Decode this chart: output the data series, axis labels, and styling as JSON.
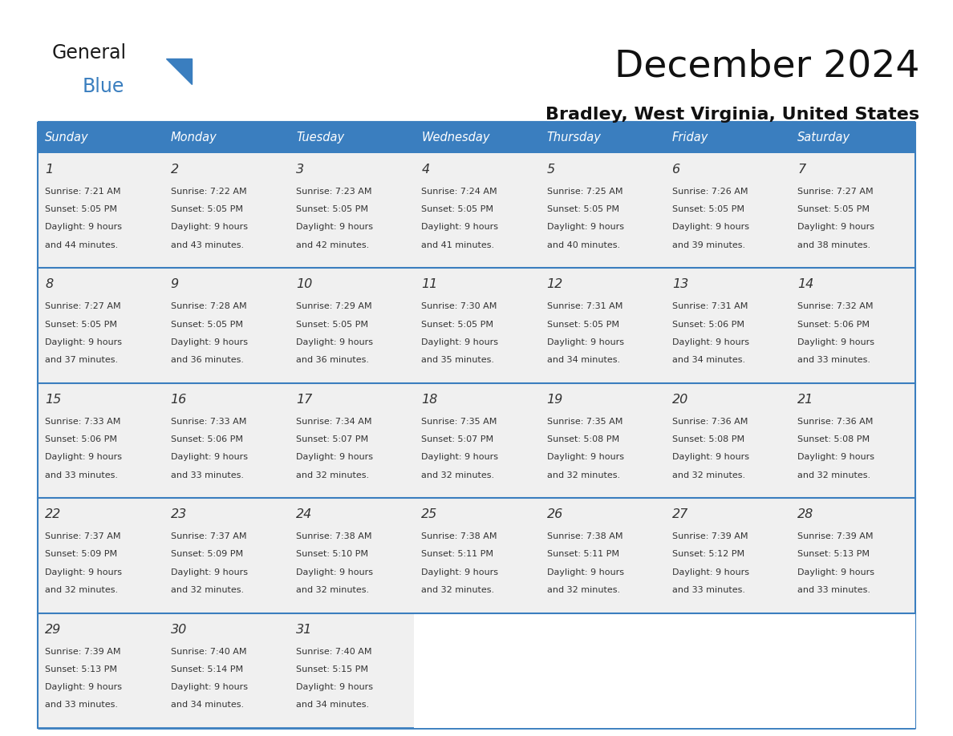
{
  "title": "December 2024",
  "subtitle": "Bradley, West Virginia, United States",
  "header_color": "#3a7ebf",
  "header_text_color": "#ffffff",
  "cell_bg_color": "#f0f0f0",
  "cell_bg_color_white": "#ffffff",
  "day_number_color": "#333333",
  "text_color": "#333333",
  "border_color": "#3a7ebf",
  "separator_color": "#3a7ebf",
  "days_of_week": [
    "Sunday",
    "Monday",
    "Tuesday",
    "Wednesday",
    "Thursday",
    "Friday",
    "Saturday"
  ],
  "weeks": [
    [
      {
        "day": 1,
        "sunrise": "7:21 AM",
        "sunset": "5:05 PM",
        "daylight": "9 hours and 44 minutes"
      },
      {
        "day": 2,
        "sunrise": "7:22 AM",
        "sunset": "5:05 PM",
        "daylight": "9 hours and 43 minutes"
      },
      {
        "day": 3,
        "sunrise": "7:23 AM",
        "sunset": "5:05 PM",
        "daylight": "9 hours and 42 minutes"
      },
      {
        "day": 4,
        "sunrise": "7:24 AM",
        "sunset": "5:05 PM",
        "daylight": "9 hours and 41 minutes"
      },
      {
        "day": 5,
        "sunrise": "7:25 AM",
        "sunset": "5:05 PM",
        "daylight": "9 hours and 40 minutes"
      },
      {
        "day": 6,
        "sunrise": "7:26 AM",
        "sunset": "5:05 PM",
        "daylight": "9 hours and 39 minutes"
      },
      {
        "day": 7,
        "sunrise": "7:27 AM",
        "sunset": "5:05 PM",
        "daylight": "9 hours and 38 minutes"
      }
    ],
    [
      {
        "day": 8,
        "sunrise": "7:27 AM",
        "sunset": "5:05 PM",
        "daylight": "9 hours and 37 minutes"
      },
      {
        "day": 9,
        "sunrise": "7:28 AM",
        "sunset": "5:05 PM",
        "daylight": "9 hours and 36 minutes"
      },
      {
        "day": 10,
        "sunrise": "7:29 AM",
        "sunset": "5:05 PM",
        "daylight": "9 hours and 36 minutes"
      },
      {
        "day": 11,
        "sunrise": "7:30 AM",
        "sunset": "5:05 PM",
        "daylight": "9 hours and 35 minutes"
      },
      {
        "day": 12,
        "sunrise": "7:31 AM",
        "sunset": "5:05 PM",
        "daylight": "9 hours and 34 minutes"
      },
      {
        "day": 13,
        "sunrise": "7:31 AM",
        "sunset": "5:06 PM",
        "daylight": "9 hours and 34 minutes"
      },
      {
        "day": 14,
        "sunrise": "7:32 AM",
        "sunset": "5:06 PM",
        "daylight": "9 hours and 33 minutes"
      }
    ],
    [
      {
        "day": 15,
        "sunrise": "7:33 AM",
        "sunset": "5:06 PM",
        "daylight": "9 hours and 33 minutes"
      },
      {
        "day": 16,
        "sunrise": "7:33 AM",
        "sunset": "5:06 PM",
        "daylight": "9 hours and 33 minutes"
      },
      {
        "day": 17,
        "sunrise": "7:34 AM",
        "sunset": "5:07 PM",
        "daylight": "9 hours and 32 minutes"
      },
      {
        "day": 18,
        "sunrise": "7:35 AM",
        "sunset": "5:07 PM",
        "daylight": "9 hours and 32 minutes"
      },
      {
        "day": 19,
        "sunrise": "7:35 AM",
        "sunset": "5:08 PM",
        "daylight": "9 hours and 32 minutes"
      },
      {
        "day": 20,
        "sunrise": "7:36 AM",
        "sunset": "5:08 PM",
        "daylight": "9 hours and 32 minutes"
      },
      {
        "day": 21,
        "sunrise": "7:36 AM",
        "sunset": "5:08 PM",
        "daylight": "9 hours and 32 minutes"
      }
    ],
    [
      {
        "day": 22,
        "sunrise": "7:37 AM",
        "sunset": "5:09 PM",
        "daylight": "9 hours and 32 minutes"
      },
      {
        "day": 23,
        "sunrise": "7:37 AM",
        "sunset": "5:09 PM",
        "daylight": "9 hours and 32 minutes"
      },
      {
        "day": 24,
        "sunrise": "7:38 AM",
        "sunset": "5:10 PM",
        "daylight": "9 hours and 32 minutes"
      },
      {
        "day": 25,
        "sunrise": "7:38 AM",
        "sunset": "5:11 PM",
        "daylight": "9 hours and 32 minutes"
      },
      {
        "day": 26,
        "sunrise": "7:38 AM",
        "sunset": "5:11 PM",
        "daylight": "9 hours and 32 minutes"
      },
      {
        "day": 27,
        "sunrise": "7:39 AM",
        "sunset": "5:12 PM",
        "daylight": "9 hours and 33 minutes"
      },
      {
        "day": 28,
        "sunrise": "7:39 AM",
        "sunset": "5:13 PM",
        "daylight": "9 hours and 33 minutes"
      }
    ],
    [
      {
        "day": 29,
        "sunrise": "7:39 AM",
        "sunset": "5:13 PM",
        "daylight": "9 hours and 33 minutes"
      },
      {
        "day": 30,
        "sunrise": "7:40 AM",
        "sunset": "5:14 PM",
        "daylight": "9 hours and 34 minutes"
      },
      {
        "day": 31,
        "sunrise": "7:40 AM",
        "sunset": "5:15 PM",
        "daylight": "9 hours and 34 minutes"
      },
      null,
      null,
      null,
      null
    ]
  ],
  "logo_text1": "General",
  "logo_text2": "Blue",
  "logo_color1": "#1a1a1a",
  "logo_color2": "#3a7ebf"
}
